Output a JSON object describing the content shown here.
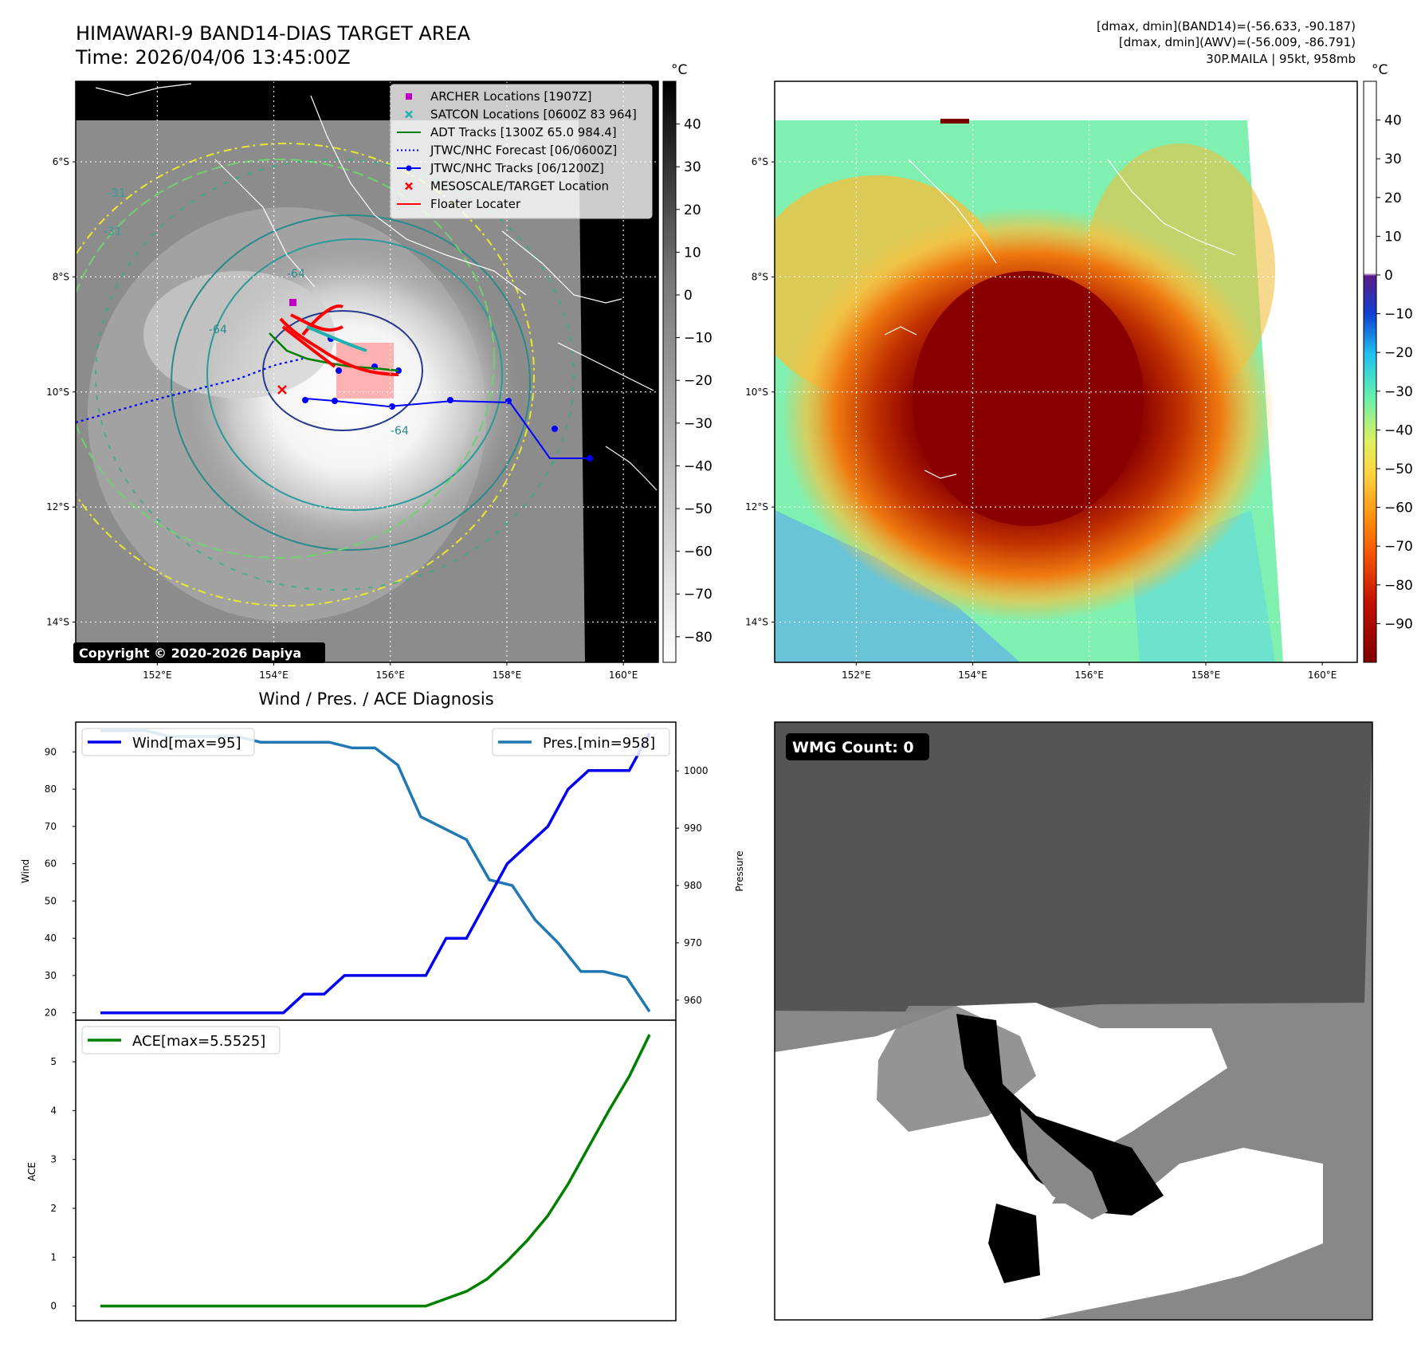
{
  "header": {
    "title_line1": "HIMAWARI-9 BAND14-DIAS TARGET AREA",
    "title_line2": "Time: 2026/04/06 13:45:00Z",
    "info_line1": "[dmax, dmin](BAND14)=(-56.633, -90.187)",
    "info_line2": "[dmax, dmin](AWV)=(-56.009, -86.791)",
    "info_line3": "30P.MAILA | 95kt, 958mb"
  },
  "map": {
    "lat_labels": [
      "6°S",
      "8°S",
      "10°S",
      "12°S",
      "14°S"
    ],
    "lon_labels": [
      "152°E",
      "154°E",
      "156°E",
      "158°E",
      "160°E"
    ],
    "lat_values": [
      -6,
      -8,
      -10,
      -12,
      -14
    ],
    "lon_values": [
      152,
      154,
      156,
      158,
      160
    ],
    "lon_range": [
      150.6,
      160.6
    ],
    "lat_range": [
      -4.6,
      -14.7
    ],
    "copyright": "Copyright © 2020-2026 Dapiya",
    "contour_labels": [
      "-31",
      "-31",
      "-64",
      "-64",
      "-64"
    ],
    "storm_center": [
      155.3,
      -9.9
    ],
    "colors": {
      "land": "#ffffff",
      "coast_outline": "#ffffff"
    }
  },
  "colorbar_left": {
    "unit": "°C",
    "ticks": [
      "40",
      "30",
      "20",
      "10",
      "0",
      "−10",
      "−20",
      "−30",
      "−40",
      "−50",
      "−60",
      "−70",
      "−80"
    ],
    "tick_values": [
      40,
      30,
      20,
      10,
      0,
      -10,
      -20,
      -30,
      -40,
      -50,
      -60,
      -70,
      -80
    ],
    "range": [
      50,
      -86
    ]
  },
  "colorbar_right": {
    "unit": "°C",
    "ticks": [
      "40",
      "30",
      "20",
      "10",
      "0",
      "−10",
      "−20",
      "−30",
      "−40",
      "−50",
      "−60",
      "−70",
      "−80",
      "−90"
    ],
    "tick_values": [
      40,
      30,
      20,
      10,
      0,
      -10,
      -20,
      -30,
      -40,
      -50,
      -60,
      -70,
      -80,
      -90
    ],
    "range": [
      50,
      -100
    ]
  },
  "legend_map": {
    "items": [
      {
        "label": "ARCHER Locations [1907Z]",
        "color": "#c000c0",
        "marker": "square"
      },
      {
        "label": "SATCON Locations [0600Z 83 964]",
        "color": "#20b0b0",
        "marker": "x"
      },
      {
        "label": "ADT Tracks [1300Z 65.0 984.4]",
        "color": "#008000",
        "marker": "line"
      },
      {
        "label": "JTWC/NHC Forecast [06/0600Z]",
        "color": "#0000ff",
        "marker": "dotted"
      },
      {
        "label": "JTWC/NHC Tracks [06/1200Z]",
        "color": "#0000ff",
        "marker": "line-dot"
      },
      {
        "label": "MESOSCALE/TARGET Location",
        "color": "#ff0000",
        "marker": "x"
      },
      {
        "label": "Floater Locater",
        "color": "#ff0000",
        "marker": "line"
      }
    ]
  },
  "diagnosis": {
    "title": "Wind / Pres. / ACE Diagnosis",
    "wind_ylabel": "Wind",
    "pres_ylabel": "Pressure",
    "ace_ylabel": "ACE",
    "legend_wind": "Wind[max=95]",
    "legend_pres": "Pres.[min=958]",
    "legend_ace": "ACE[max=5.5525]",
    "wind_ticks": [
      "20",
      "30",
      "40",
      "50",
      "60",
      "70",
      "80",
      "90"
    ],
    "pres_ticks": [
      "960",
      "970",
      "980",
      "990",
      "1000"
    ],
    "ace_ticks": [
      "0",
      "1",
      "2",
      "3",
      "4",
      "5"
    ],
    "colors": {
      "wind": "#0000ee",
      "pres": "#1f77b4",
      "ace": "#008000"
    }
  },
  "wmg": {
    "label": "WMG Count: 0"
  },
  "chart_data": [
    {
      "type": "line",
      "series": [
        {
          "name": "Wind[max=95]",
          "values": [
            20,
            20,
            20,
            20,
            20,
            20,
            20,
            20,
            20,
            20,
            25,
            25,
            30,
            30,
            30,
            30,
            30,
            40,
            40,
            50,
            60,
            65,
            70,
            80,
            85,
            85,
            85,
            95
          ]
        },
        {
          "name": "Pres.[min=958]",
          "values": [
            1007,
            1007,
            1007,
            1006,
            1006,
            1006,
            1006,
            1005,
            1005,
            1005,
            1005,
            1004,
            1004,
            1001,
            992,
            990,
            988,
            981,
            980,
            974,
            970,
            965,
            965,
            964,
            958
          ]
        }
      ],
      "wind_ylim": [
        18,
        98
      ],
      "pres_ylim": [
        956.5,
        1008.5
      ]
    },
    {
      "type": "line",
      "series": [
        {
          "name": "ACE[max=5.5525]",
          "values": [
            0,
            0,
            0,
            0,
            0,
            0,
            0,
            0,
            0,
            0,
            0,
            0,
            0,
            0,
            0,
            0,
            0,
            0.15,
            0.3,
            0.55,
            0.92,
            1.35,
            1.85,
            2.5,
            3.25,
            4.0,
            4.7,
            5.5525
          ]
        }
      ],
      "ylim": [
        -0.3,
        5.85
      ]
    }
  ]
}
